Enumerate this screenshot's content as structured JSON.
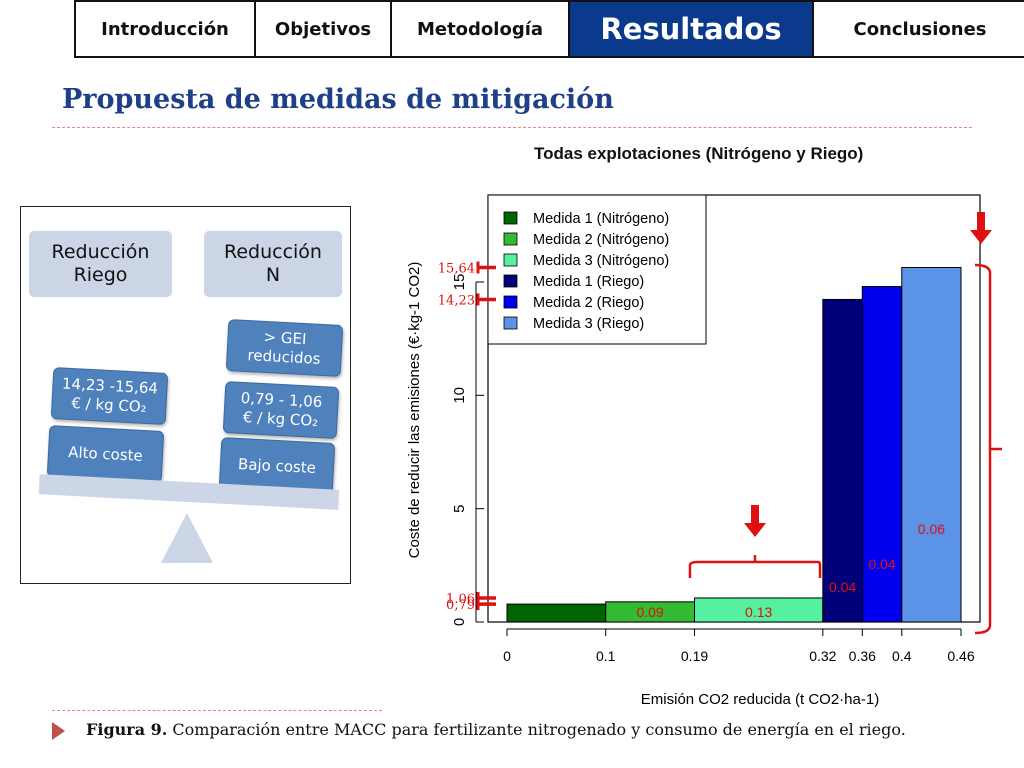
{
  "nav": {
    "tabs": [
      {
        "label": "Introducción",
        "active": false
      },
      {
        "label": "Objetivos",
        "active": false
      },
      {
        "label": "Metodología",
        "active": false
      },
      {
        "label": "Resultados",
        "active": true
      },
      {
        "label": "Conclusiones",
        "active": false
      }
    ],
    "active_color": "#0b3a8c"
  },
  "page_title": "Propuesta de medidas de mitigación",
  "diagram": {
    "left_heading": "Reducción\nRiego",
    "right_heading": "Reducción\nN",
    "left_cost_range": "14,23 -15,64\n€ / kg CO₂",
    "left_cost_level": "Alto coste",
    "right_ghg": "> GEI\nreducidos",
    "right_cost_range": "0,79 - 1,06\n€ / kg CO₂",
    "right_cost_level": "Bajo coste"
  },
  "chart_data": {
    "type": "bar",
    "title": "Todas explotaciones (Nitrógeno y Riego)",
    "xlabel": "Emisión CO2 reducida (t CO2·ha-1)",
    "ylabel": "Coste de reducir las emisiones (€·kg-1 CO2)",
    "ylim": [
      0,
      18
    ],
    "y_ticks": [
      "0",
      "5",
      "10",
      "15"
    ],
    "x_ticks": [
      "0",
      "0.1",
      "0.19",
      "0.32",
      "0.36",
      "0.4",
      "0.46"
    ],
    "legend_position": "top-left",
    "series": [
      {
        "name": "Medida 1 (Nitrógeno)",
        "color": "#006400",
        "x_start": 0,
        "x_end": 0.1,
        "value": 0.79,
        "label": ""
      },
      {
        "name": "Medida 2 (Nitrógeno)",
        "color": "#33bb33",
        "x_start": 0.1,
        "x_end": 0.19,
        "value": 0.89,
        "label": "0.09"
      },
      {
        "name": "Medida 3 (Nitrógeno)",
        "color": "#55f0a0",
        "x_start": 0.19,
        "x_end": 0.32,
        "value": 1.06,
        "label": "0.13"
      },
      {
        "name": "Medida 1 (Riego)",
        "color": "#00007a",
        "x_start": 0.32,
        "x_end": 0.36,
        "value": 14.23,
        "label": "0.04"
      },
      {
        "name": "Medida 2 (Riego)",
        "color": "#0000ee",
        "x_start": 0.36,
        "x_end": 0.4,
        "value": 14.8,
        "label": "0.04"
      },
      {
        "name": "Medida 3 (Riego)",
        "color": "#5b93e6",
        "x_start": 0.4,
        "x_end": 0.46,
        "value": 15.64,
        "label": "0.06"
      }
    ],
    "annotations": [
      {
        "text": "15,64",
        "y": 15.64
      },
      {
        "text": "14,23",
        "y": 14.23
      },
      {
        "text": "1.06",
        "y": 1.06
      },
      {
        "text": "0,79",
        "y": 0.79
      }
    ],
    "accent_color": "#e01010"
  },
  "caption": {
    "label": "Figura 9.",
    "text": " Comparación entre MACC para fertilizante nitrogenado y consumo de energía en el riego."
  }
}
